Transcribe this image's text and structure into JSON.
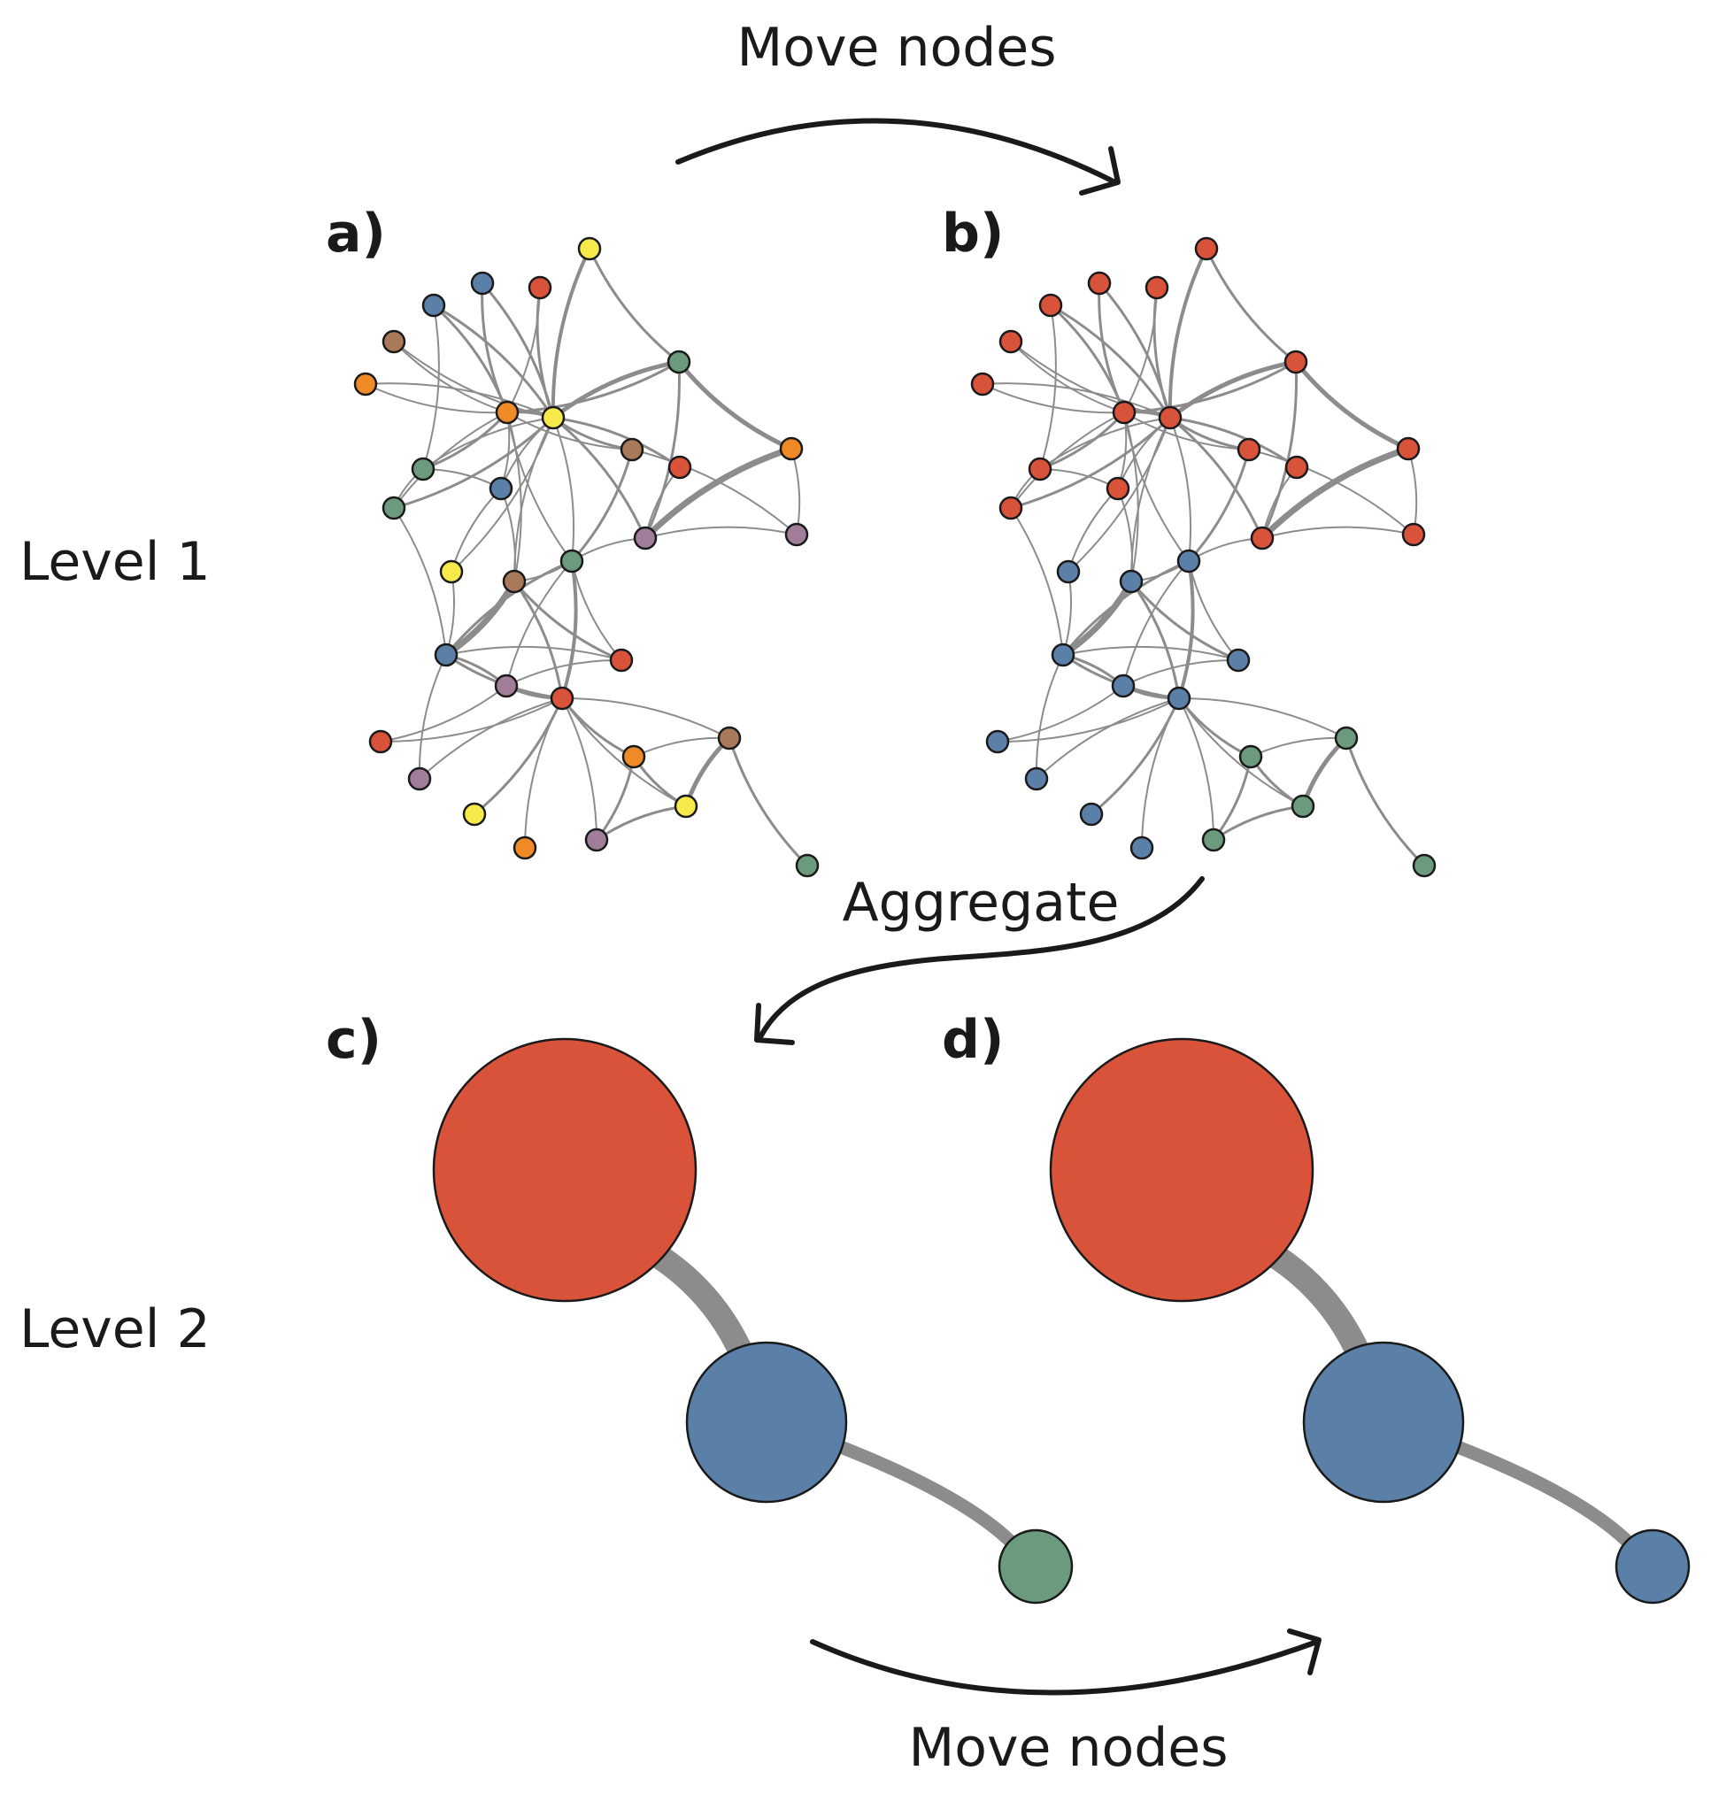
{
  "labels": {
    "move_top": "Move nodes",
    "move_bottom": "Move nodes",
    "aggregate": "Aggregate",
    "level1": "Level 1",
    "level2": "Level 2",
    "panel_a": "a)",
    "panel_b": "b)",
    "panel_c": "c)",
    "panel_d": "d)"
  },
  "colors": {
    "red": "#d9533a",
    "blue": "#5b80a8",
    "green": "#6b9a7d",
    "orange": "#ef8a26",
    "yellow": "#f5ea4a",
    "brown": "#a87a5a",
    "purple": "#a07d98",
    "edge": "#8c8c8c",
    "outline": "#1a1a1a"
  },
  "network": {
    "node_colors_a": [
      "yellow",
      "blue",
      "red",
      "blue",
      "brown",
      "orange",
      "green",
      "orange",
      "yellow",
      "brown",
      "red",
      "orange",
      "green",
      "green",
      "blue",
      "purple",
      "purple",
      "yellow",
      "brown",
      "green",
      "blue",
      "red",
      "purple",
      "red",
      "red",
      "brown",
      "orange",
      "purple",
      "yellow",
      "yellow",
      "orange",
      "purple",
      "green"
    ],
    "node_colors_b": [
      "red",
      "red",
      "red",
      "red",
      "red",
      "red",
      "red",
      "red",
      "red",
      "red",
      "red",
      "red",
      "red",
      "red",
      "red",
      "red",
      "red",
      "blue",
      "blue",
      "blue",
      "blue",
      "blue",
      "blue",
      "blue",
      "blue",
      "green",
      "green",
      "blue",
      "green",
      "blue",
      "blue",
      "green",
      "green"
    ]
  },
  "aggregated": {
    "node_colors_c": [
      "red",
      "blue",
      "green"
    ],
    "node_colors_d": [
      "red",
      "blue",
      "blue"
    ]
  }
}
